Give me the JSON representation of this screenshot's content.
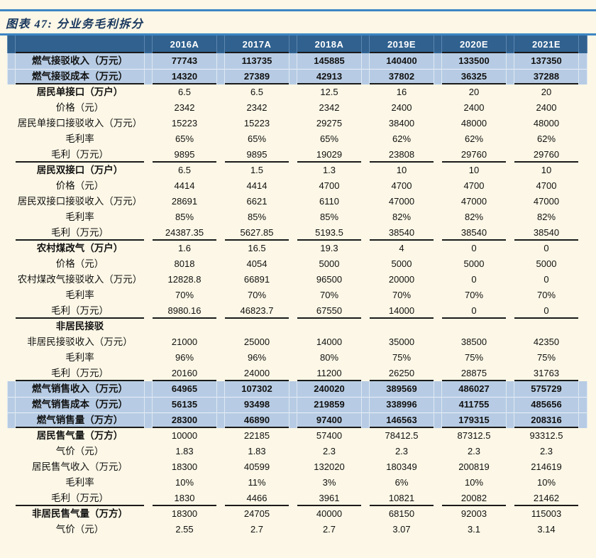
{
  "title": "图表 47: 分业务毛利拆分",
  "colors": {
    "page_bg": "#FCF7E6",
    "header_bg": "#30618F",
    "highlight_row_bg": "#B7CCE4",
    "rule_blue": "#3D85C4",
    "title_color": "#17365D",
    "border_black": "#1A1A1A"
  },
  "table": {
    "columns": [
      "2016A",
      "2017A",
      "2018A",
      "2019E",
      "2020E",
      "2021E"
    ],
    "rows": [
      {
        "label": "燃气接驳收入（万元）",
        "values": [
          "77743",
          "113735",
          "145885",
          "140400",
          "133500",
          "137350"
        ],
        "style": "highlight",
        "section_end": false
      },
      {
        "label": "燃气接驳成本（万元）",
        "values": [
          "14320",
          "27389",
          "42913",
          "37802",
          "36325",
          "37288"
        ],
        "style": "highlight",
        "section_end": true
      },
      {
        "label": "居民单接口（万户）",
        "values": [
          "6.5",
          "6.5",
          "12.5",
          "16",
          "20",
          "20"
        ],
        "style": "section",
        "section_end": false
      },
      {
        "label": "价格（元）",
        "values": [
          "2342",
          "2342",
          "2342",
          "2400",
          "2400",
          "2400"
        ],
        "style": "normal",
        "section_end": false
      },
      {
        "label": "居民单接口接驳收入（万元）",
        "values": [
          "15223",
          "15223",
          "29275",
          "38400",
          "48000",
          "48000"
        ],
        "style": "normal",
        "section_end": false
      },
      {
        "label": "毛利率",
        "values": [
          "65%",
          "65%",
          "65%",
          "62%",
          "62%",
          "62%"
        ],
        "style": "normal",
        "section_end": false
      },
      {
        "label": "毛利（万元）",
        "values": [
          "9895",
          "9895",
          "19029",
          "23808",
          "29760",
          "29760"
        ],
        "style": "normal",
        "section_end": true
      },
      {
        "label": "居民双接口（万户）",
        "values": [
          "6.5",
          "1.5",
          "1.3",
          "10",
          "10",
          "10"
        ],
        "style": "section",
        "section_end": false
      },
      {
        "label": "价格（元）",
        "values": [
          "4414",
          "4414",
          "4700",
          "4700",
          "4700",
          "4700"
        ],
        "style": "normal",
        "section_end": false
      },
      {
        "label": "居民双接口接驳收入（万元）",
        "values": [
          "28691",
          "6621",
          "6110",
          "47000",
          "47000",
          "47000"
        ],
        "style": "normal",
        "section_end": false
      },
      {
        "label": "毛利率",
        "values": [
          "85%",
          "85%",
          "85%",
          "82%",
          "82%",
          "82%"
        ],
        "style": "normal",
        "section_end": false
      },
      {
        "label": "毛利（万元）",
        "values": [
          "24387.35",
          "5627.85",
          "5193.5",
          "38540",
          "38540",
          "38540"
        ],
        "style": "normal",
        "section_end": true
      },
      {
        "label": "农村煤改气（万户）",
        "values": [
          "1.6",
          "16.5",
          "19.3",
          "4",
          "0",
          "0"
        ],
        "style": "section",
        "section_end": false
      },
      {
        "label": "价格（元）",
        "values": [
          "8018",
          "4054",
          "5000",
          "5000",
          "5000",
          "5000"
        ],
        "style": "normal",
        "section_end": false
      },
      {
        "label": "农村煤改气接驳收入（万元）",
        "values": [
          "12828.8",
          "66891",
          "96500",
          "20000",
          "0",
          "0"
        ],
        "style": "normal",
        "section_end": false
      },
      {
        "label": "毛利率",
        "values": [
          "70%",
          "70%",
          "70%",
          "70%",
          "70%",
          "70%"
        ],
        "style": "normal",
        "section_end": false
      },
      {
        "label": "毛利（万元）",
        "values": [
          "8980.16",
          "46823.7",
          "67550",
          "14000",
          "0",
          "0"
        ],
        "style": "normal",
        "section_end": true
      },
      {
        "label": "非居民接驳",
        "values": [
          "",
          "",
          "",
          "",
          "",
          ""
        ],
        "style": "section",
        "section_end": false
      },
      {
        "label": "非居民接驳收入（万元）",
        "values": [
          "21000",
          "25000",
          "14000",
          "35000",
          "38500",
          "42350"
        ],
        "style": "normal",
        "section_end": false
      },
      {
        "label": "毛利率",
        "values": [
          "96%",
          "96%",
          "80%",
          "75%",
          "75%",
          "75%"
        ],
        "style": "normal",
        "section_end": false
      },
      {
        "label": "毛利（万元）",
        "values": [
          "20160",
          "24000",
          "11200",
          "26250",
          "28875",
          "31763"
        ],
        "style": "normal",
        "section_end": true
      },
      {
        "label": "燃气销售收入（万元）",
        "values": [
          "64965",
          "107302",
          "240020",
          "389569",
          "486027",
          "575729"
        ],
        "style": "highlight",
        "section_end": false
      },
      {
        "label": "燃气销售成本（万元）",
        "values": [
          "56135",
          "93498",
          "219859",
          "338996",
          "411755",
          "485656"
        ],
        "style": "highlight",
        "section_end": false
      },
      {
        "label": "燃气销售量（万方）",
        "values": [
          "28300",
          "46890",
          "97400",
          "146563",
          "179315",
          "208316"
        ],
        "style": "highlight",
        "section_end": true
      },
      {
        "label": "居民售气量（万方）",
        "values": [
          "10000",
          "22185",
          "57400",
          "78412.5",
          "87312.5",
          "93312.5"
        ],
        "style": "section",
        "section_end": false
      },
      {
        "label": "气价（元）",
        "values": [
          "1.83",
          "1.83",
          "2.3",
          "2.3",
          "2.3",
          "2.3"
        ],
        "style": "normal",
        "section_end": false
      },
      {
        "label": "居民售气收入（万元）",
        "values": [
          "18300",
          "40599",
          "132020",
          "180349",
          "200819",
          "214619"
        ],
        "style": "normal",
        "section_end": false
      },
      {
        "label": "毛利率",
        "values": [
          "10%",
          "11%",
          "3%",
          "6%",
          "10%",
          "10%"
        ],
        "style": "normal",
        "section_end": false
      },
      {
        "label": "毛利（万元）",
        "values": [
          "1830",
          "4466",
          "3961",
          "10821",
          "20082",
          "21462"
        ],
        "style": "normal",
        "section_end": true
      },
      {
        "label": "非居民售气量（万方）",
        "values": [
          "18300",
          "24705",
          "40000",
          "68150",
          "92003",
          "115003"
        ],
        "style": "section",
        "section_end": false
      },
      {
        "label": "气价（元）",
        "values": [
          "2.55",
          "2.7",
          "2.7",
          "3.07",
          "3.1",
          "3.14"
        ],
        "style": "normal",
        "section_end": false
      }
    ]
  }
}
